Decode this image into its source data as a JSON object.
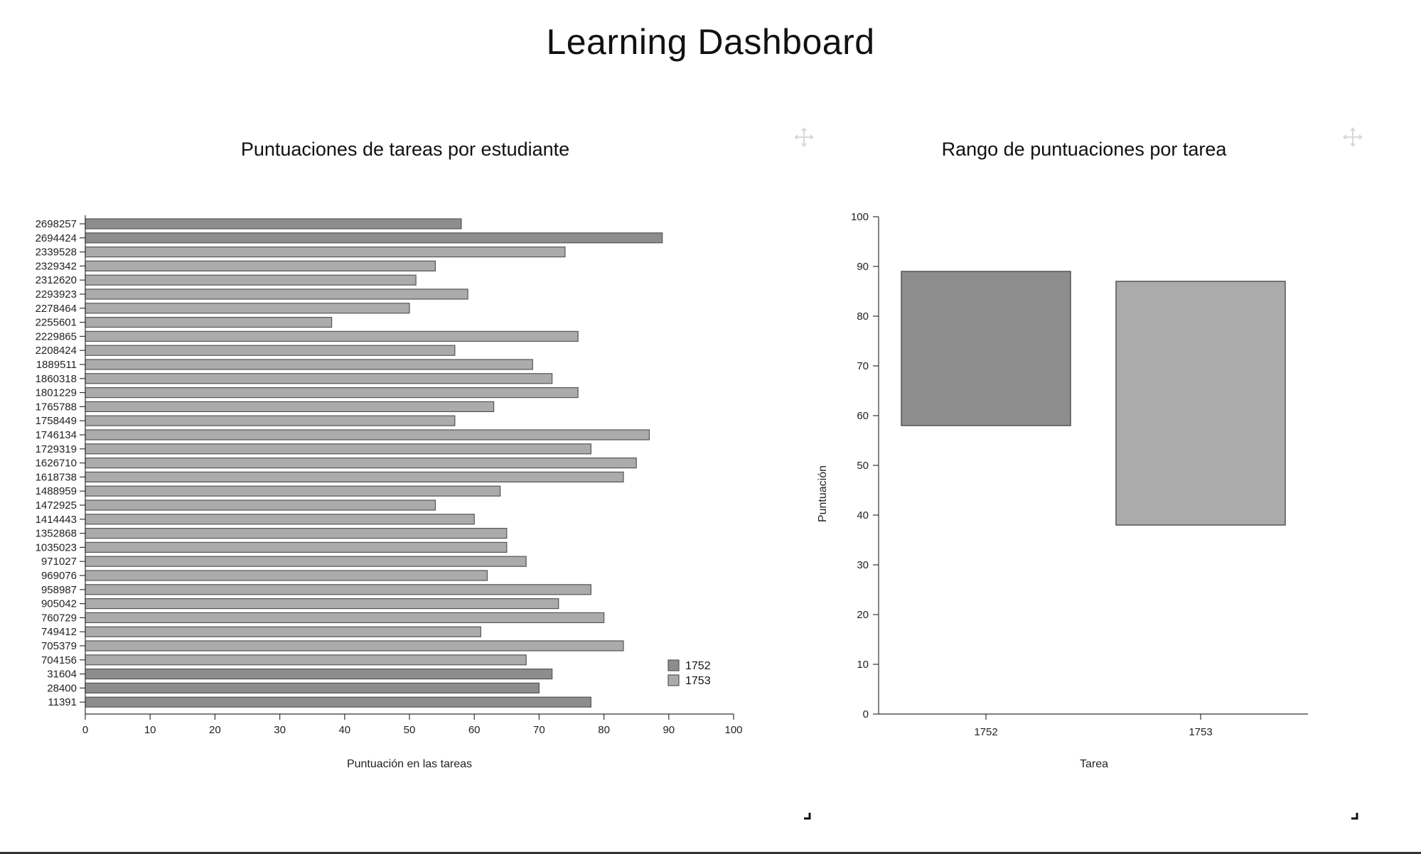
{
  "dashboard": {
    "title": "Learning Dashboard"
  },
  "colors": {
    "task_1752": "#8d8d8d",
    "task_1753": "#ababab",
    "axis": "#333333",
    "bar_stroke": "#555555"
  },
  "icons": {
    "move": "move-icon",
    "resize": "resize-corner-icon"
  },
  "chart_data": [
    {
      "type": "bar",
      "orientation": "horizontal",
      "title": "Puntuaciones de tareas por estudiante",
      "xlabel": "Puntuación en las tareas",
      "ylabel": "",
      "xlim": [
        0,
        100
      ],
      "x_ticks": [
        0,
        10,
        20,
        30,
        40,
        50,
        60,
        70,
        80,
        90,
        100
      ],
      "legend": {
        "position": "bottom-right",
        "entries": [
          "1752",
          "1753"
        ]
      },
      "categories": [
        "2698257",
        "2694424",
        "2339528",
        "2329342",
        "2312620",
        "2293923",
        "2278464",
        "2255601",
        "2229865",
        "2208424",
        "1889511",
        "1860318",
        "1801229",
        "1765788",
        "1758449",
        "1746134",
        "1729319",
        "1626710",
        "1618738",
        "1488959",
        "1472925",
        "1414443",
        "1352868",
        "1035023",
        "971027",
        "969076",
        "958987",
        "905042",
        "760729",
        "749412",
        "705379",
        "704156",
        "31604",
        "28400",
        "11391"
      ],
      "values": [
        58,
        89,
        74,
        54,
        51,
        59,
        50,
        38,
        76,
        57,
        69,
        72,
        76,
        63,
        57,
        87,
        78,
        85,
        83,
        64,
        54,
        60,
        65,
        65,
        68,
        62,
        78,
        73,
        80,
        61,
        83,
        68,
        72,
        70,
        78
      ],
      "task": [
        "1752",
        "1752",
        "1753",
        "1753",
        "1753",
        "1753",
        "1753",
        "1753",
        "1753",
        "1753",
        "1753",
        "1753",
        "1753",
        "1753",
        "1753",
        "1753",
        "1753",
        "1753",
        "1753",
        "1753",
        "1753",
        "1753",
        "1753",
        "1753",
        "1753",
        "1753",
        "1753",
        "1753",
        "1753",
        "1753",
        "1753",
        "1753",
        "1752",
        "1752",
        "1752"
      ]
    },
    {
      "type": "bar",
      "subtype": "range",
      "title": "Rango de puntuaciones por tarea",
      "xlabel": "Tarea",
      "ylabel": "Puntuación",
      "ylim": [
        0,
        100
      ],
      "y_ticks": [
        0,
        10,
        20,
        30,
        40,
        50,
        60,
        70,
        80,
        90,
        100
      ],
      "categories": [
        "1752",
        "1753"
      ],
      "ranges": [
        {
          "task": "1752",
          "min": 58,
          "max": 89
        },
        {
          "task": "1753",
          "min": 38,
          "max": 87
        }
      ]
    }
  ]
}
